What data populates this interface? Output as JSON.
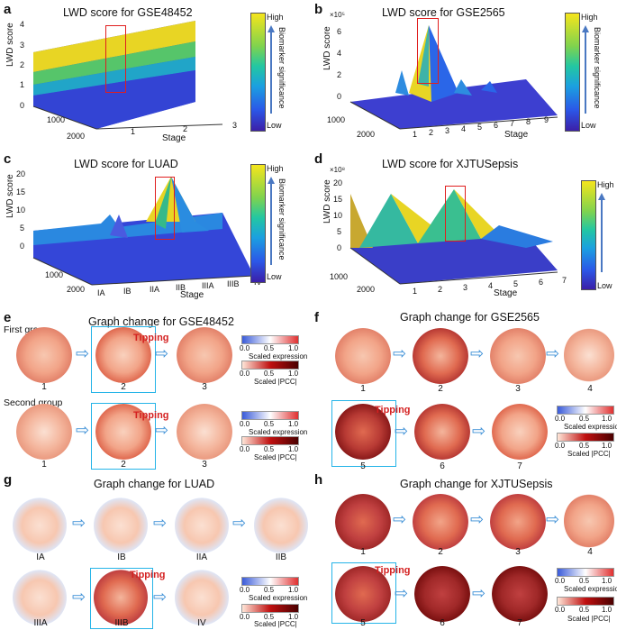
{
  "panels": {
    "a": {
      "letter": "a",
      "title": "LWD score for GSE48452",
      "ylabel": "LWD score",
      "xlabel": "Stage",
      "yticks": [
        "4",
        "3",
        "2",
        "1",
        "0"
      ],
      "stages": [
        "1",
        "2",
        "3"
      ],
      "depth": [
        "1000",
        "2000"
      ]
    },
    "b": {
      "letter": "b",
      "title": "LWD score for GSE2565",
      "ylabel": "LWD score",
      "xlabel": "Stage",
      "exponent": "×10⁵",
      "yticks": [
        "6",
        "4",
        "2",
        "0"
      ],
      "stages": [
        "1",
        "2",
        "3",
        "4",
        "5",
        "6",
        "7",
        "8",
        "9"
      ],
      "depth": [
        "1000",
        "2000"
      ]
    },
    "c": {
      "letter": "c",
      "title": "LWD score for LUAD",
      "ylabel": "LWD score",
      "xlabel": "Stage",
      "yticks": [
        "20",
        "15",
        "10",
        "5",
        "0"
      ],
      "stages": [
        "IA",
        "IB",
        "IIA",
        "IIB",
        "IIIA",
        "IIIB",
        "IV"
      ],
      "depth": [
        "1000",
        "2000"
      ]
    },
    "d": {
      "letter": "d",
      "title": "LWD score for XJTUSepsis",
      "ylabel": "LWD score",
      "xlabel": "Stage",
      "exponent": "×10⁸",
      "yticks": [
        "20",
        "15",
        "10",
        "5",
        "0"
      ],
      "stages": [
        "1",
        "2",
        "3",
        "4",
        "5",
        "6",
        "7"
      ],
      "depth": [
        "1000",
        "2000"
      ]
    },
    "e": {
      "letter": "e",
      "title": "Graph change for GSE48452",
      "group1": "First group",
      "group2": "Second group",
      "tipping": "Tipping",
      "stages": [
        "1",
        "2",
        "3"
      ]
    },
    "f": {
      "letter": "f",
      "title": "Graph change for GSE2565",
      "tipping": "Tipping",
      "stages": [
        "1",
        "2",
        "3",
        "4",
        "5",
        "6",
        "7"
      ]
    },
    "g": {
      "letter": "g",
      "title": "Graph change for LUAD",
      "tipping": "Tipping",
      "stages": [
        "IA",
        "IB",
        "IIA",
        "IIB",
        "IIIA",
        "IIIB",
        "IV"
      ]
    },
    "h": {
      "letter": "h",
      "title": "Graph change for XJTUSepsis",
      "tipping": "Tipping",
      "stages": [
        "1",
        "2",
        "3",
        "4",
        "5",
        "6",
        "7"
      ]
    }
  },
  "colorbar": {
    "high": "High",
    "low": "Low",
    "side": "Biomarker significance"
  },
  "legend": {
    "expression": "Scaled expression",
    "pcc": "Scaled |PCC|",
    "ticks": [
      "0.0",
      "0.5",
      "1.0"
    ]
  },
  "colors": {
    "tipping_box": "#25b4e8",
    "score_box": "#e01e1e",
    "high": "#f5e51c",
    "low": "#3b1fa8"
  }
}
